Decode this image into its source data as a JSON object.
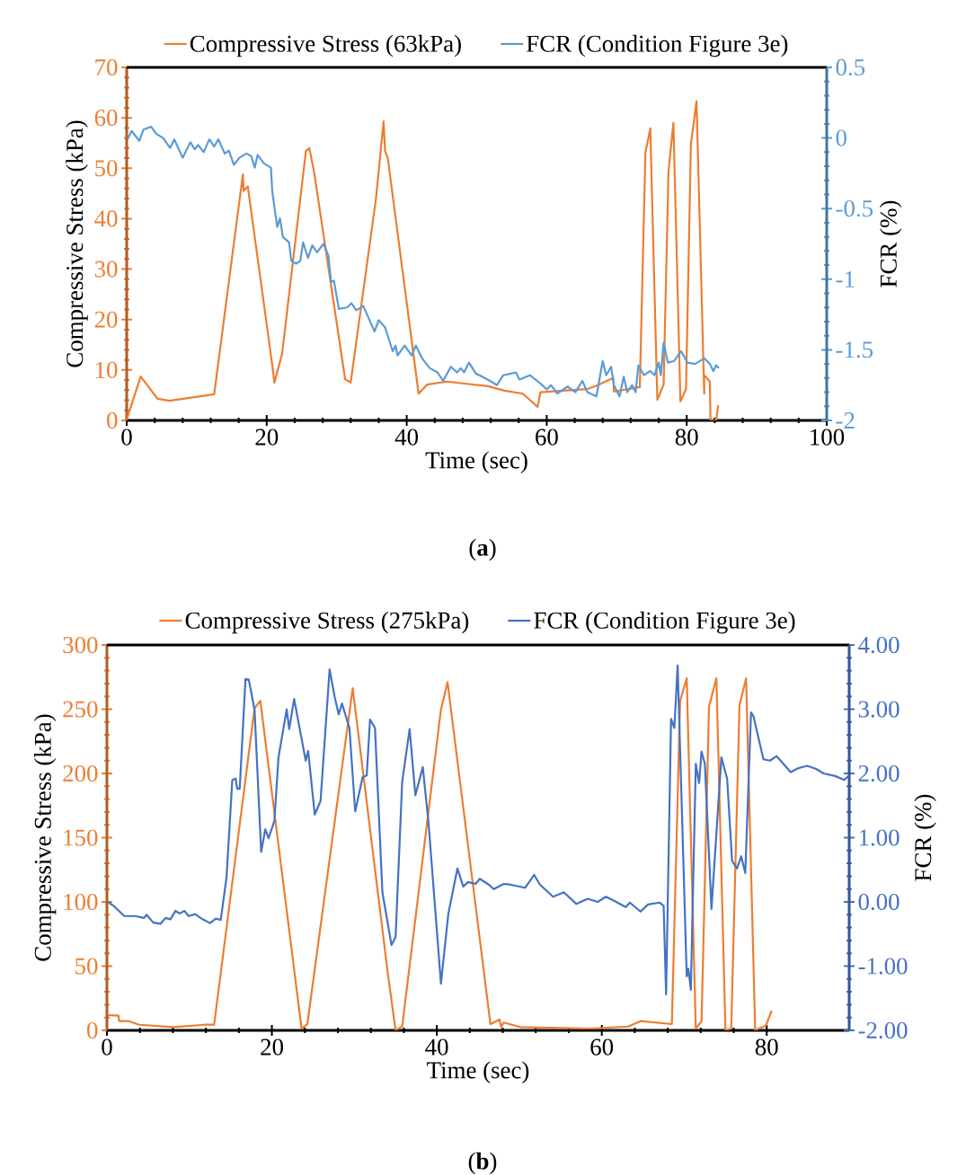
{
  "chart_data": [
    {
      "type": "line",
      "xlabel": "Time (sec)",
      "ylabel": "Compressive Stress (kPa)",
      "y2label": "FCR (%)",
      "legend": "top",
      "xlim": [
        0,
        100
      ],
      "xticks": [
        0,
        20,
        40,
        60,
        80,
        100
      ],
      "ylim": [
        0,
        70
      ],
      "yticks": [
        0,
        10,
        20,
        30,
        40,
        50,
        60,
        70
      ],
      "y2lim": [
        -2,
        0.5
      ],
      "y2ticks": [
        -2,
        -1.5,
        -1,
        -0.5,
        0,
        0.5
      ],
      "annotations": [
        "(**a**)"
      ],
      "series": [
        {
          "name": "Compressive Stress (63kPa)",
          "color": "#ed7d31",
          "x": [
            0,
            0.7,
            2.0,
            4.4,
            6.1,
            12.5,
            16.6,
            16.7,
            17.3,
            20.8,
            21.1,
            22.2,
            25.6,
            26.1,
            26.8,
            31.2,
            32.0,
            35.6,
            36.7,
            36.9,
            37.3,
            41.7,
            42.9,
            45.7,
            51.6,
            54.0,
            56.6,
            58.7,
            59.1,
            65.7,
            67.0,
            69.5,
            69.6,
            73.3,
            74.1,
            74.8,
            75.8,
            76.7,
            77.4,
            78.1,
            79.1,
            79.9,
            80.6,
            81.4,
            82.5,
            82.5,
            83.3,
            83.4,
            84.2,
            84.5
          ],
          "values": [
            0.2,
            3.2,
            8.7,
            4.3,
            3.9,
            5.2,
            48.8,
            45.5,
            46.4,
            10.9,
            7.5,
            13.2,
            53.4,
            54.0,
            49.0,
            8.2,
            7.5,
            43.9,
            59.3,
            53.4,
            52.0,
            5.3,
            7.1,
            7.7,
            6.8,
            5.9,
            5.3,
            2.7,
            5.6,
            6.2,
            6.8,
            8.4,
            5.7,
            6.6,
            53.1,
            57.9,
            4.1,
            7.1,
            49.5,
            59.0,
            3.8,
            6.2,
            54.9,
            63.3,
            5.3,
            9.0,
            7.7,
            0,
            0,
            3.0
          ]
        },
        {
          "name": "FCR (Condition Figure 3e)",
          "color": "#5b9bd5",
          "axis": "y2",
          "x": [
            0.2,
            0.7,
            1.8,
            2.4,
            3.5,
            4.2,
            5.2,
            6.2,
            6.8,
            8.0,
            9.1,
            9.7,
            10.2,
            11.0,
            11.8,
            12.5,
            13.1,
            14.0,
            14.6,
            15.3,
            16.1,
            17.1,
            17.8,
            18.3,
            18.7,
            19.6,
            20.6,
            20.8,
            21.5,
            21.9,
            22.3,
            23.2,
            23.5,
            24.2,
            24.8,
            25.2,
            25.9,
            26.5,
            27.2,
            28.1,
            28.8,
            29.2,
            29.6,
            30.3,
            31.5,
            32.1,
            32.8,
            33.8,
            35.4,
            36.0,
            36.9,
            38.0,
            38.4,
            38.7,
            39.7,
            40.7,
            41.3,
            42.2,
            43.3,
            44.4,
            45.2,
            46.3,
            47.2,
            47.7,
            48.2,
            48.9,
            49.9,
            50.4,
            51.9,
            52.9,
            53.8,
            55.6,
            56.1,
            57.6,
            58.9,
            60.0,
            60.6,
            61.5,
            63.0,
            64.1,
            65.1,
            65.8,
            67.1,
            68.0,
            68.5,
            69.2,
            69.6,
            70.4,
            71.0,
            71.5,
            72.2,
            72.7,
            73.1,
            73.9,
            74.8,
            75.4,
            76.0,
            76.3,
            76.7,
            77.3,
            78.2,
            79.2,
            80.1,
            81.2,
            82.5,
            83.3,
            83.8,
            84.2,
            84.6
          ],
          "values": [
            0.0,
            0.05,
            -0.02,
            0.06,
            0.08,
            0.03,
            0.0,
            -0.07,
            -0.01,
            -0.14,
            -0.03,
            -0.08,
            -0.05,
            -0.1,
            -0.01,
            -0.06,
            -0.01,
            -0.11,
            -0.09,
            -0.19,
            -0.14,
            -0.11,
            -0.13,
            -0.21,
            -0.12,
            -0.18,
            -0.21,
            -0.38,
            -0.63,
            -0.57,
            -0.7,
            -0.74,
            -0.87,
            -0.89,
            -0.87,
            -0.74,
            -0.85,
            -0.76,
            -0.81,
            -0.75,
            -0.83,
            -1.02,
            -1.01,
            -1.21,
            -1.2,
            -1.17,
            -1.22,
            -1.19,
            -1.37,
            -1.29,
            -1.34,
            -1.51,
            -1.47,
            -1.54,
            -1.47,
            -1.54,
            -1.47,
            -1.56,
            -1.63,
            -1.66,
            -1.72,
            -1.62,
            -1.66,
            -1.63,
            -1.66,
            -1.59,
            -1.67,
            -1.68,
            -1.72,
            -1.75,
            -1.68,
            -1.66,
            -1.71,
            -1.68,
            -1.73,
            -1.78,
            -1.75,
            -1.81,
            -1.76,
            -1.8,
            -1.72,
            -1.8,
            -1.83,
            -1.58,
            -1.68,
            -1.62,
            -1.75,
            -1.83,
            -1.69,
            -1.8,
            -1.75,
            -1.8,
            -1.61,
            -1.68,
            -1.65,
            -1.68,
            -1.59,
            -1.68,
            -1.45,
            -1.59,
            -1.58,
            -1.51,
            -1.59,
            -1.6,
            -1.56,
            -1.6,
            -1.65,
            -1.61,
            -1.63
          ]
        }
      ]
    },
    {
      "type": "line",
      "xlabel": "Time (sec)",
      "ylabel": "Compressive Stress (kPa)",
      "y2label": "FCR (%)",
      "legend": "top",
      "xlim": [
        0,
        90
      ],
      "xticks": [
        0,
        20,
        40,
        60,
        80
      ],
      "ylim": [
        0,
        300
      ],
      "yticks": [
        0,
        50,
        100,
        150,
        200,
        250,
        300
      ],
      "y2lim": [
        -2,
        4
      ],
      "y2ticks": [
        {
          "value": -2,
          "label": "-2.00"
        },
        {
          "value": -1,
          "label": "-1.00"
        },
        {
          "value": 0,
          "label": "0.00"
        },
        {
          "value": 1,
          "label": "1.00"
        },
        {
          "value": 2,
          "label": "2.00"
        },
        {
          "value": 3,
          "label": "3.00"
        },
        {
          "value": 4,
          "label": "4.00"
        }
      ],
      "annotations": [
        "(**b**)"
      ],
      "series": [
        {
          "name": "Compressive Stress (275kPa)",
          "color": "#ed7d31",
          "x": [
            0.1,
            1.4,
            1.5,
            2.65,
            3.9,
            8.1,
            11.8,
            13.0,
            17.9,
            18.6,
            23.6,
            24.3,
            29.8,
            34.1,
            35.0,
            35.8,
            40.5,
            41.3,
            46.5,
            47.6,
            47.8,
            48.1,
            50.1,
            58.7,
            63.2,
            64.7,
            68.5,
            69.5,
            70.3,
            71.4,
            72.1,
            73.0,
            73.9,
            75.0,
            75.7,
            76.7,
            77.5,
            78.6,
            79.9,
            80.6
          ],
          "values": [
            11.9,
            11.4,
            7.2,
            7.2,
            4.4,
            2.6,
            4.4,
            4.4,
            250.8,
            256.6,
            1.4,
            4.9,
            266.4,
            42.2,
            0.2,
            3.0,
            249.7,
            271.1,
            4.9,
            8.4,
            2.6,
            6.1,
            2.6,
            1.4,
            3.0,
            7.2,
            4.9,
            256.6,
            274.1,
            1.4,
            7.2,
            252.0,
            274.1,
            0.2,
            1.4,
            253.1,
            274.1,
            0.2,
            3.7,
            15.4
          ]
        },
        {
          "name": "FCR (Condition Figure 3e)",
          "color": "#4472c4",
          "axis": "y2",
          "x": [
            0.1,
            0.8,
            2.1,
            3.4,
            4.5,
            4.8,
            5.6,
            6.5,
            7.1,
            7.7,
            8.3,
            8.8,
            9.4,
            9.9,
            10.7,
            11.6,
            12.5,
            13.2,
            13.8,
            14.5,
            15.2,
            15.6,
            15.8,
            16.1,
            16.8,
            17.2,
            17.9,
            18.7,
            19.2,
            19.6,
            20.3,
            20.8,
            21.8,
            22.1,
            22.7,
            24.1,
            24.4,
            25.2,
            25.9,
            27.0,
            27.6,
            28.1,
            28.5,
            29.4,
            30.1,
            31.0,
            31.5,
            31.9,
            32.5,
            33.4,
            34.5,
            35.0,
            35.8,
            36.7,
            37.4,
            38.3,
            39.0,
            40.5,
            41.4,
            42.5,
            43.2,
            43.8,
            44.7,
            45.2,
            46.3,
            46.9,
            48.1,
            48.9,
            50.7,
            51.8,
            52.5,
            54.1,
            55.4,
            56.9,
            58.3,
            59.5,
            60.5,
            61.6,
            62.9,
            63.4,
            64.7,
            65.6,
            67.0,
            67.5,
            67.8,
            68.4,
            68.8,
            69.2,
            70.3,
            70.5,
            70.8,
            71.4,
            71.8,
            72.1,
            72.5,
            73.3,
            74.5,
            75.2,
            75.8,
            76.4,
            76.9,
            77.4,
            78.1,
            78.4,
            79.6,
            80.4,
            81.2,
            82.9,
            83.8,
            84.9,
            86.0,
            86.9,
            88.3,
            89.4,
            90.0
          ],
          "values": [
            0.0,
            -0.06,
            -0.22,
            -0.22,
            -0.25,
            -0.2,
            -0.32,
            -0.34,
            -0.25,
            -0.27,
            -0.14,
            -0.18,
            -0.14,
            -0.22,
            -0.19,
            -0.27,
            -0.33,
            -0.26,
            -0.28,
            0.38,
            1.9,
            1.92,
            1.76,
            1.76,
            3.47,
            3.46,
            2.99,
            0.78,
            1.13,
            0.99,
            1.26,
            2.25,
            3.0,
            2.69,
            3.16,
            2.2,
            2.35,
            1.36,
            1.57,
            3.62,
            3.2,
            2.92,
            3.09,
            2.71,
            1.41,
            1.94,
            1.97,
            2.84,
            2.71,
            0.15,
            -0.67,
            -0.55,
            1.87,
            2.69,
            1.66,
            2.1,
            1.22,
            -1.27,
            -0.18,
            0.52,
            0.24,
            0.31,
            0.28,
            0.36,
            0.27,
            0.2,
            0.28,
            0.27,
            0.22,
            0.42,
            0.27,
            0.08,
            0.15,
            -0.03,
            0.05,
            0.0,
            0.08,
            0.01,
            -0.08,
            -0.01,
            -0.15,
            -0.04,
            -0.01,
            -0.06,
            -1.44,
            2.85,
            2.71,
            3.68,
            -1.16,
            -1.04,
            -1.37,
            2.15,
            1.85,
            2.34,
            2.15,
            -0.11,
            2.25,
            1.92,
            0.64,
            0.52,
            0.71,
            0.45,
            2.95,
            2.89,
            2.22,
            2.2,
            2.27,
            2.02,
            2.08,
            2.12,
            2.07,
            2.0,
            1.96,
            1.9,
            1.97
          ]
        }
      ]
    }
  ]
}
